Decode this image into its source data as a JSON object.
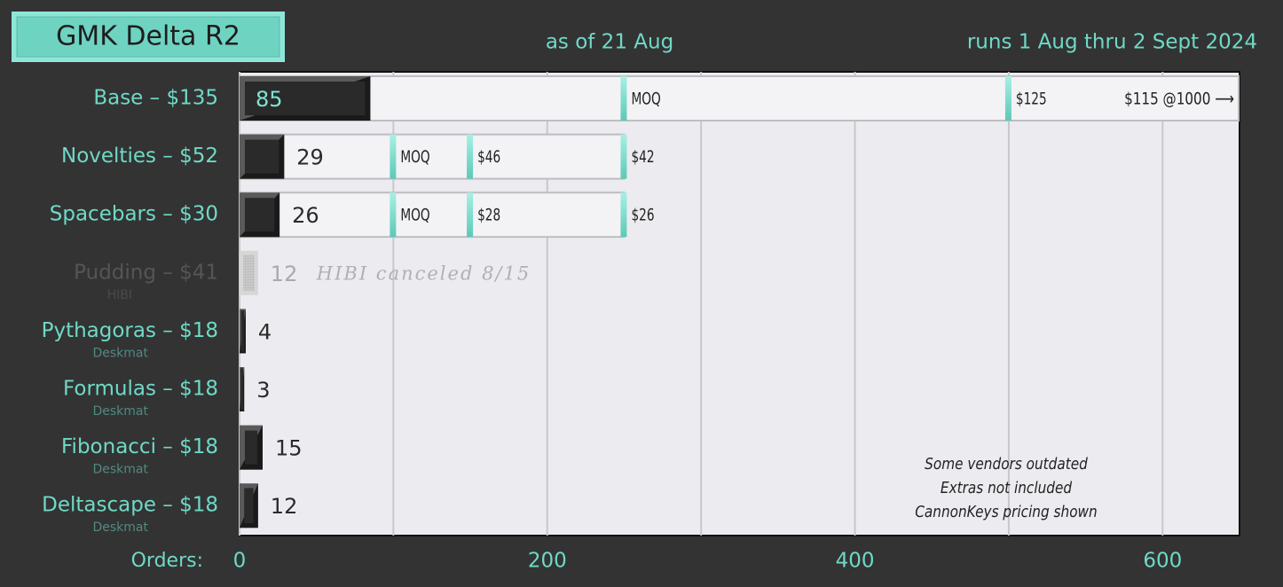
{
  "chart_data": {
    "type": "bar",
    "title": "GMK Delta R2",
    "subtitle": "as of 21 Aug",
    "run_dates": "runs 1 Aug thru 2 Sept 2024",
    "x_label": "Orders:",
    "categories": [
      "Base – $135",
      "Novelties – $52",
      "Spacebars – $30",
      "Pudding – $41",
      "Pythagoras – $18",
      "Formulas – $18",
      "Fibonacci – $18",
      "Deltascape – $18"
    ],
    "sublabels": [
      null,
      null,
      null,
      "HIBI",
      "Deskmat",
      "Deskmat",
      "Deskmat",
      "Deskmat"
    ],
    "values": [
      85,
      29,
      26,
      12,
      4,
      3,
      15,
      12
    ],
    "muted": [
      false,
      false,
      false,
      true,
      false,
      false,
      false,
      false
    ],
    "annotations": [
      null,
      null,
      null,
      "HIBI canceled 8/15",
      null,
      null,
      null,
      null
    ],
    "tiers": [
      [
        {
          "value": 250,
          "label": "MOQ"
        },
        {
          "value": 500,
          "label": "$125"
        }
      ],
      [
        {
          "value": 100,
          "label": "MOQ"
        },
        {
          "value": 150,
          "label": "$46"
        },
        {
          "value": 250,
          "label": "$42"
        }
      ],
      [
        {
          "value": 100,
          "label": "MOQ"
        },
        {
          "value": 150,
          "label": "$28"
        },
        {
          "value": 250,
          "label": "$26"
        }
      ],
      [],
      [],
      [],
      [],
      []
    ],
    "overflow_labels": [
      "$115 @1000 ⟶",
      null,
      null,
      null,
      null,
      null,
      null,
      null
    ],
    "notes": [
      "Some vendors outdated",
      "Extras not included",
      "CannonKeys pricing shown"
    ],
    "xlim": [
      0,
      650
    ],
    "xticks": [
      0,
      200,
      400,
      600
    ],
    "minor_xticks": [
      100,
      300,
      500
    ],
    "grid": true,
    "color": "#2a2a2a",
    "marker_color": "#6fe0d0"
  }
}
